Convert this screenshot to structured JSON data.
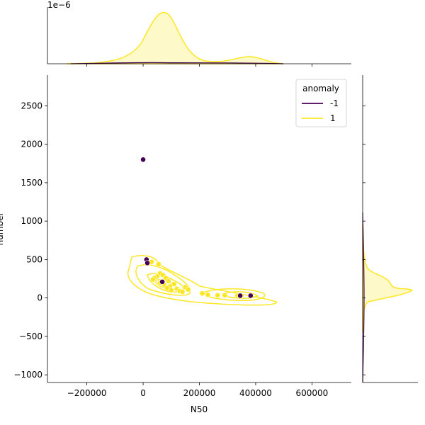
{
  "chart_data": {
    "type": "scatter",
    "subtype": "jointplot-kde",
    "xlabel": "N50",
    "ylabel": "number",
    "xlim": [
      -340000,
      740000
    ],
    "ylim": [
      -1100,
      2900
    ],
    "x_ticks": [
      -200000,
      0,
      200000,
      400000,
      600000
    ],
    "x_tick_labels": [
      "−200000",
      "0",
      "200000",
      "400000",
      "600000"
    ],
    "y_ticks": [
      -1000,
      -500,
      0,
      500,
      1000,
      1500,
      2000,
      2500
    ],
    "y_tick_labels": [
      "−1000",
      "−500",
      "0",
      "500",
      "1000",
      "1500",
      "2000",
      "2500"
    ],
    "marginal_offset_label": "1e−6",
    "legend": {
      "title": "anomaly",
      "placement": "top-right",
      "entries": [
        {
          "label": "-1",
          "color": "#440154"
        },
        {
          "label": "1",
          "color": "#fde725"
        }
      ]
    },
    "series": [
      {
        "name": "-1",
        "color": "#440154",
        "points": [
          {
            "x": 0,
            "y": 1800
          },
          {
            "x": 12000,
            "y": 500
          },
          {
            "x": 15000,
            "y": 455
          },
          {
            "x": 68000,
            "y": 210
          },
          {
            "x": 345000,
            "y": 30
          },
          {
            "x": 382000,
            "y": 30
          }
        ]
      },
      {
        "name": "1",
        "color": "#fde725",
        "points": [
          {
            "x": 20000,
            "y": 460
          },
          {
            "x": 30000,
            "y": 470
          },
          {
            "x": 55000,
            "y": 440
          },
          {
            "x": 60000,
            "y": 320
          },
          {
            "x": 70000,
            "y": 300
          },
          {
            "x": 50000,
            "y": 280
          },
          {
            "x": 40000,
            "y": 260
          },
          {
            "x": 80000,
            "y": 260
          },
          {
            "x": 35000,
            "y": 240
          },
          {
            "x": 90000,
            "y": 220
          },
          {
            "x": 60000,
            "y": 200
          },
          {
            "x": 110000,
            "y": 180
          },
          {
            "x": 75000,
            "y": 170
          },
          {
            "x": 95000,
            "y": 150
          },
          {
            "x": 150000,
            "y": 140
          },
          {
            "x": 85000,
            "y": 130
          },
          {
            "x": 120000,
            "y": 120
          },
          {
            "x": 160000,
            "y": 110
          },
          {
            "x": 100000,
            "y": 100
          },
          {
            "x": 130000,
            "y": 90
          },
          {
            "x": 140000,
            "y": 80
          },
          {
            "x": 210000,
            "y": 60
          },
          {
            "x": 230000,
            "y": 40
          },
          {
            "x": 265000,
            "y": 35
          },
          {
            "x": 290000,
            "y": 35
          },
          {
            "x": 335000,
            "y": 32
          },
          {
            "x": 350000,
            "y": 30
          }
        ]
      }
    ]
  }
}
